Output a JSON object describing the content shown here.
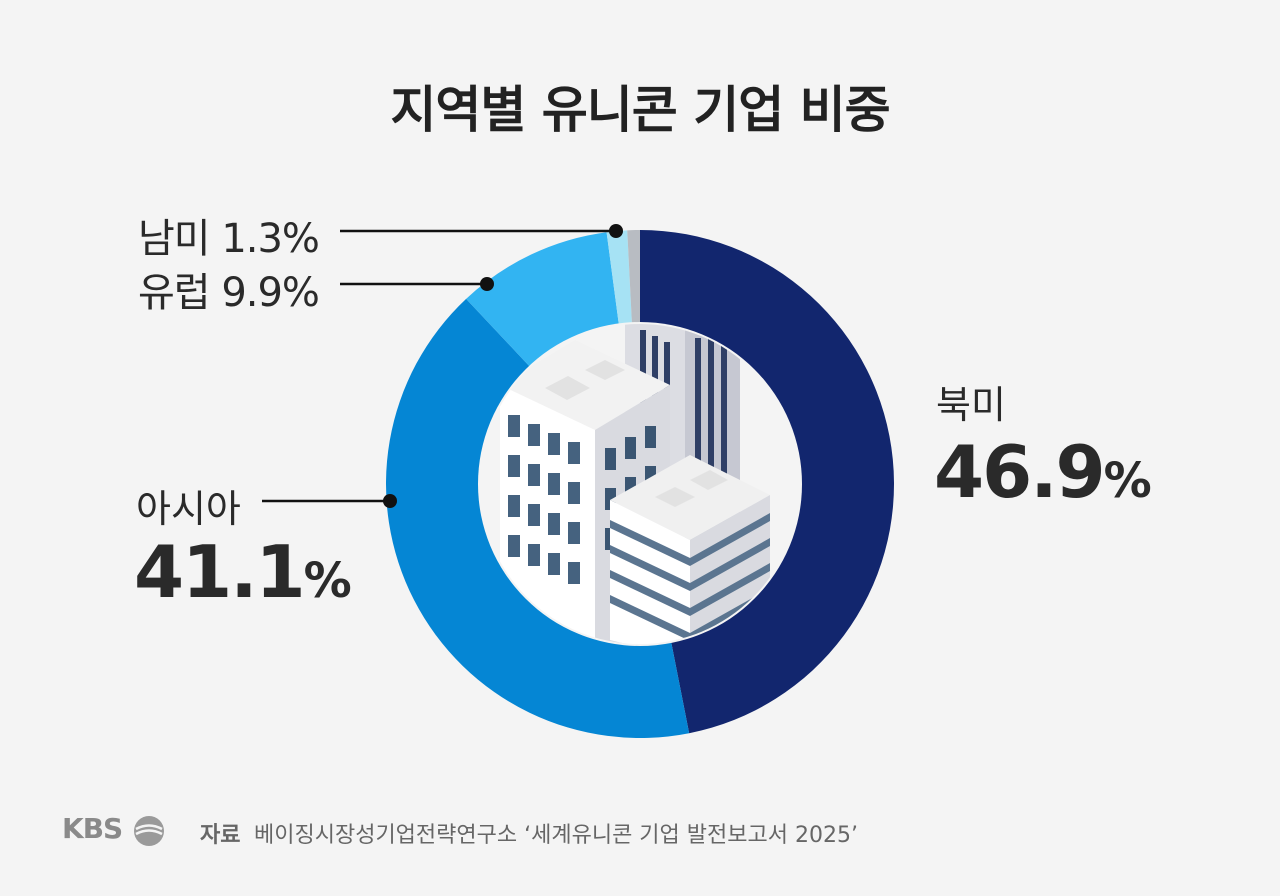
{
  "title": "지역별 유니콘 기업 비중",
  "chart_data": {
    "type": "pie",
    "title": "지역별 유니콘 기업 비중",
    "donut": true,
    "categories": [
      "북미",
      "아시아",
      "유럽",
      "남미"
    ],
    "values": [
      46.9,
      41.1,
      9.9,
      1.3
    ],
    "unit": "%",
    "colors": [
      "#12266e",
      "#0586d4",
      "#32b4f2",
      "#a6e2f4"
    ],
    "remainder_color": "#b8bcc2"
  },
  "labels": {
    "north_america": {
      "name": "북미",
      "value": "46.9",
      "unit": "%"
    },
    "asia": {
      "name": "아시아",
      "value": "41.1",
      "unit": "%"
    },
    "europe": "유럽 9.9%",
    "south_america": "남미 1.3%"
  },
  "footer": {
    "logo": "KBS",
    "source_label": "자료",
    "source_text": "베이징시장성기업전략연구소 ‘세계유니콘 기업 발전보고서 2025’"
  }
}
